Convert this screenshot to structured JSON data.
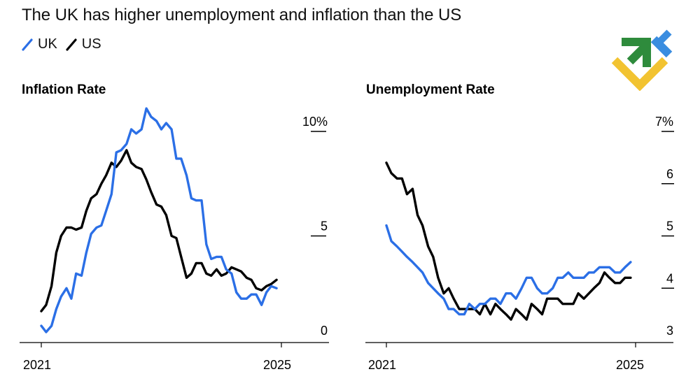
{
  "title": "The UK has higher unemployment and inflation than the US",
  "legend": [
    {
      "label": "UK",
      "color": "#2b6fe6"
    },
    {
      "label": "US",
      "color": "#000000"
    }
  ],
  "logo": {
    "icon": "brand-logo-icon",
    "colors": [
      "#2e8b3c",
      "#f2c331",
      "#3a8de0"
    ]
  },
  "chart_data": [
    {
      "type": "line",
      "title": "Inflation Rate",
      "x_range": [
        2021,
        2025
      ],
      "x_ticks": [
        "2021",
        "2025"
      ],
      "y_range": [
        0,
        10
      ],
      "y_ticks": [
        {
          "value": 10,
          "label": "10%"
        },
        {
          "value": 5,
          "label": "5"
        },
        {
          "value": 0,
          "label": "0"
        }
      ],
      "series": [
        {
          "name": "UK",
          "color": "#2b6fe6",
          "x": [
            2021.0,
            2021.08,
            2021.17,
            2021.25,
            2021.33,
            2021.42,
            2021.5,
            2021.58,
            2021.67,
            2021.75,
            2021.83,
            2021.92,
            2022.0,
            2022.08,
            2022.17,
            2022.25,
            2022.33,
            2022.42,
            2022.5,
            2022.58,
            2022.67,
            2022.75,
            2022.83,
            2022.92,
            2023.0,
            2023.08,
            2023.17,
            2023.25,
            2023.33,
            2023.42,
            2023.5,
            2023.58,
            2023.67,
            2023.75,
            2023.83,
            2023.92,
            2024.0,
            2024.08,
            2024.17,
            2024.25,
            2024.33,
            2024.42,
            2024.5,
            2024.58,
            2024.67,
            2024.75,
            2024.83,
            2024.92
          ],
          "values": [
            0.7,
            0.4,
            0.7,
            1.5,
            2.1,
            2.5,
            2.0,
            3.2,
            3.1,
            4.2,
            5.1,
            5.4,
            5.5,
            6.2,
            7.0,
            9.0,
            9.1,
            9.4,
            10.1,
            9.9,
            10.1,
            11.1,
            10.7,
            10.5,
            10.1,
            10.4,
            10.1,
            8.7,
            8.7,
            7.9,
            6.8,
            6.7,
            6.7,
            4.6,
            3.9,
            4.0,
            4.0,
            3.4,
            3.2,
            2.3,
            2.0,
            2.0,
            2.2,
            2.2,
            1.7,
            2.3,
            2.6,
            2.5
          ]
        },
        {
          "name": "US",
          "color": "#000000",
          "x": [
            2021.0,
            2021.08,
            2021.17,
            2021.25,
            2021.33,
            2021.42,
            2021.5,
            2021.58,
            2021.67,
            2021.75,
            2021.83,
            2021.92,
            2022.0,
            2022.08,
            2022.17,
            2022.25,
            2022.33,
            2022.42,
            2022.5,
            2022.58,
            2022.67,
            2022.75,
            2022.83,
            2022.92,
            2023.0,
            2023.08,
            2023.17,
            2023.25,
            2023.33,
            2023.42,
            2023.5,
            2023.58,
            2023.67,
            2023.75,
            2023.83,
            2023.92,
            2024.0,
            2024.08,
            2024.17,
            2024.25,
            2024.33,
            2024.42,
            2024.5,
            2024.58,
            2024.67,
            2024.75,
            2024.83,
            2024.92
          ],
          "values": [
            1.4,
            1.7,
            2.6,
            4.2,
            5.0,
            5.4,
            5.4,
            5.3,
            5.4,
            6.2,
            6.8,
            7.0,
            7.5,
            7.9,
            8.5,
            8.3,
            8.6,
            9.1,
            8.5,
            8.3,
            8.2,
            7.7,
            7.1,
            6.5,
            6.4,
            6.0,
            5.0,
            4.9,
            4.0,
            3.0,
            3.2,
            3.7,
            3.7,
            3.2,
            3.1,
            3.4,
            3.1,
            3.2,
            3.5,
            3.4,
            3.3,
            3.0,
            2.9,
            2.5,
            2.4,
            2.6,
            2.7,
            2.9
          ]
        }
      ]
    },
    {
      "type": "line",
      "title": "Unemployment Rate",
      "x_range": [
        2021,
        2025
      ],
      "x_ticks": [
        "2021",
        "2025"
      ],
      "y_range": [
        3,
        7
      ],
      "y_ticks": [
        {
          "value": 7,
          "label": "7%"
        },
        {
          "value": 6,
          "label": "6"
        },
        {
          "value": 5,
          "label": "5"
        },
        {
          "value": 4,
          "label": "4"
        },
        {
          "value": 3,
          "label": "3"
        }
      ],
      "series": [
        {
          "name": "UK",
          "color": "#2b6fe6",
          "x": [
            2021.0,
            2021.08,
            2021.17,
            2021.25,
            2021.33,
            2021.42,
            2021.5,
            2021.58,
            2021.67,
            2021.75,
            2021.83,
            2021.92,
            2022.0,
            2022.08,
            2022.17,
            2022.25,
            2022.33,
            2022.42,
            2022.5,
            2022.58,
            2022.67,
            2022.75,
            2022.83,
            2022.92,
            2023.0,
            2023.08,
            2023.17,
            2023.25,
            2023.33,
            2023.42,
            2023.5,
            2023.58,
            2023.67,
            2023.75,
            2023.83,
            2023.92,
            2024.0,
            2024.08,
            2024.17,
            2024.25,
            2024.33,
            2024.42,
            2024.5,
            2024.58,
            2024.67,
            2024.75,
            2024.83,
            2024.92
          ],
          "values": [
            5.2,
            4.9,
            4.8,
            4.7,
            4.6,
            4.5,
            4.4,
            4.3,
            4.1,
            4.0,
            3.9,
            3.8,
            3.6,
            3.6,
            3.5,
            3.5,
            3.7,
            3.6,
            3.7,
            3.7,
            3.8,
            3.8,
            3.7,
            3.9,
            3.9,
            3.8,
            4.0,
            4.2,
            4.2,
            4.0,
            3.9,
            3.9,
            4.0,
            4.2,
            4.2,
            4.3,
            4.2,
            4.2,
            4.2,
            4.3,
            4.3,
            4.4,
            4.4,
            4.4,
            4.3,
            4.3,
            4.4,
            4.5
          ]
        },
        {
          "name": "US",
          "color": "#000000",
          "x": [
            2021.0,
            2021.08,
            2021.17,
            2021.25,
            2021.33,
            2021.42,
            2021.5,
            2021.58,
            2021.67,
            2021.75,
            2021.83,
            2021.92,
            2022.0,
            2022.08,
            2022.17,
            2022.25,
            2022.33,
            2022.42,
            2022.5,
            2022.58,
            2022.67,
            2022.75,
            2022.83,
            2022.92,
            2023.0,
            2023.08,
            2023.17,
            2023.25,
            2023.33,
            2023.42,
            2023.5,
            2023.58,
            2023.67,
            2023.75,
            2023.83,
            2023.92,
            2024.0,
            2024.08,
            2024.17,
            2024.25,
            2024.33,
            2024.42,
            2024.5,
            2024.58,
            2024.67,
            2024.75,
            2024.83,
            2024.92
          ],
          "values": [
            6.4,
            6.2,
            6.1,
            6.1,
            5.8,
            5.9,
            5.4,
            5.2,
            4.8,
            4.6,
            4.2,
            3.9,
            4.0,
            3.8,
            3.6,
            3.6,
            3.6,
            3.6,
            3.5,
            3.7,
            3.5,
            3.7,
            3.6,
            3.5,
            3.4,
            3.6,
            3.5,
            3.4,
            3.7,
            3.6,
            3.5,
            3.8,
            3.8,
            3.8,
            3.7,
            3.7,
            3.7,
            3.9,
            3.8,
            3.9,
            4.0,
            4.1,
            4.3,
            4.2,
            4.1,
            4.1,
            4.2,
            4.2
          ]
        }
      ]
    }
  ]
}
